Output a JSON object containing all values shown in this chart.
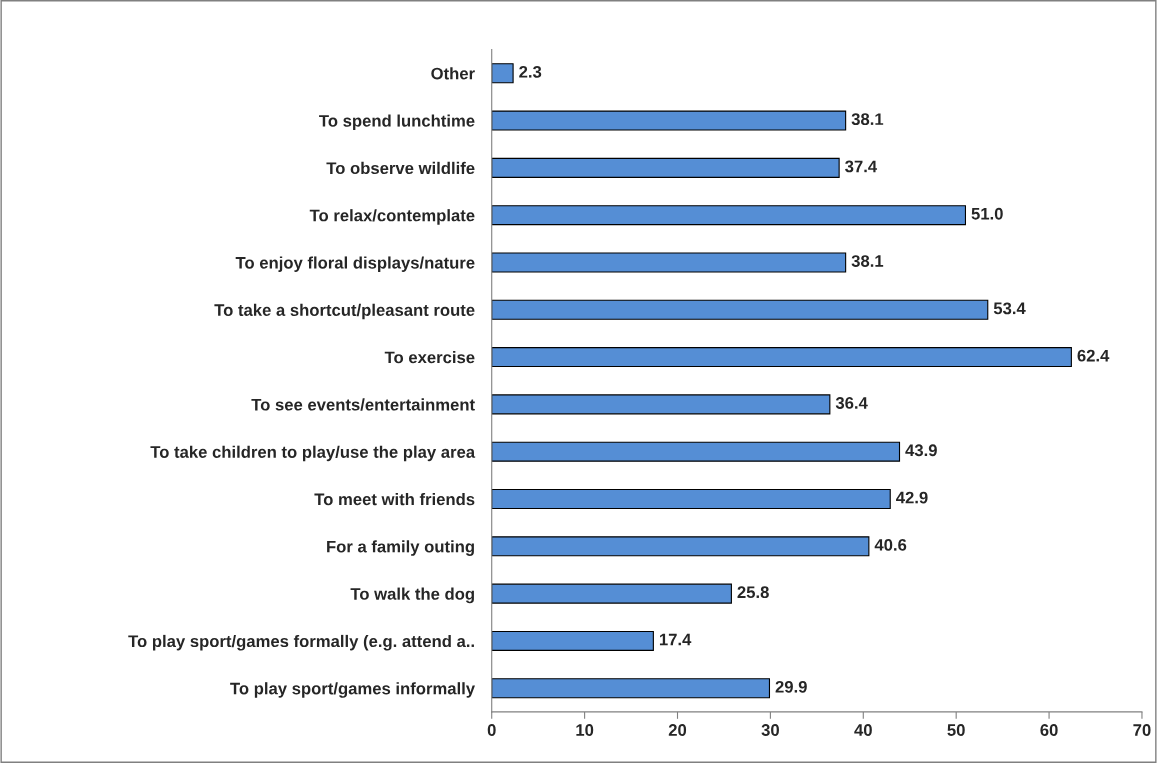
{
  "chart_data": {
    "type": "bar",
    "orientation": "horizontal",
    "categories": [
      "Other",
      "To spend lunchtime",
      "To observe wildlife",
      "To relax/contemplate",
      "To enjoy floral displays/nature",
      "To take a shortcut/pleasant route",
      "To exercise",
      "To see events/entertainment",
      "To take children to play/use the play area",
      "To meet with friends",
      "For a family outing",
      "To walk the dog",
      "To play sport/games formally (e.g. attend a..",
      "To play sport/games informally"
    ],
    "values": [
      2.3,
      38.1,
      37.4,
      51.0,
      38.1,
      53.4,
      62.4,
      36.4,
      43.9,
      42.9,
      40.6,
      25.8,
      17.4,
      29.9
    ],
    "value_labels": [
      "2.3",
      "38.1",
      "37.4",
      "51.0",
      "38.1",
      "53.4",
      "62.4",
      "36.4",
      "43.9",
      "42.9",
      "40.6",
      "25.8",
      "17.4",
      "29.9"
    ],
    "color": "#558ed5",
    "xlim": [
      0,
      70
    ],
    "xticks": [
      0,
      10,
      20,
      30,
      40,
      50,
      60,
      70
    ],
    "grid": false,
    "legend": false
  }
}
